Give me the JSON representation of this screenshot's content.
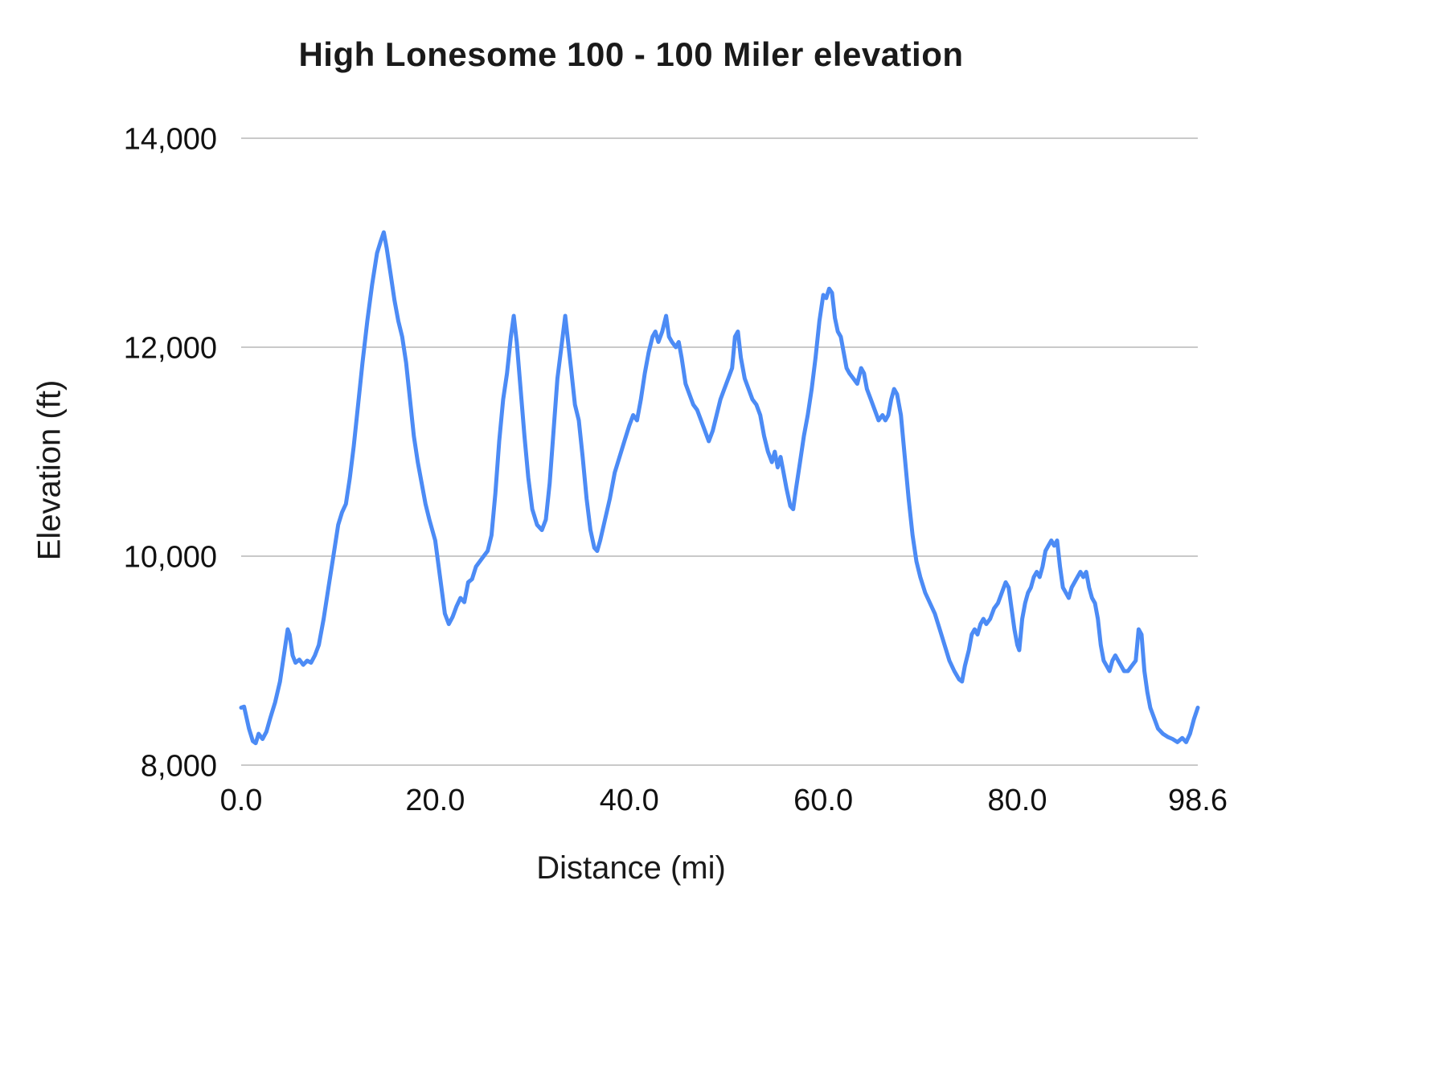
{
  "chart_data": {
    "type": "line",
    "title": "High Lonesome 100 - 100 Miler elevation",
    "xlabel": "Distance (mi)",
    "ylabel": "Elevation (ft)",
    "xlim": [
      0,
      98.6
    ],
    "ylim": [
      8000,
      14000
    ],
    "grid": "horizontal",
    "legend": "none",
    "background_color": "#ffffff",
    "line_color": "#4c8bf5",
    "grid_color": "#c9c9c9",
    "xticks": {
      "values": [
        0,
        20,
        40,
        60,
        80,
        98.6
      ],
      "labels": [
        "0.0",
        "20.0",
        "40.0",
        "60.0",
        "80.0",
        "98.6"
      ]
    },
    "yticks": {
      "values": [
        8000,
        10000,
        12000,
        14000
      ],
      "labels": [
        "8,000",
        "10,000",
        "12,000",
        "14,000"
      ]
    },
    "series_name": "Elevation",
    "points": [
      [
        0.0,
        8550
      ],
      [
        0.3,
        8560
      ],
      [
        0.8,
        8350
      ],
      [
        1.2,
        8230
      ],
      [
        1.5,
        8210
      ],
      [
        1.8,
        8300
      ],
      [
        2.2,
        8250
      ],
      [
        2.6,
        8320
      ],
      [
        3.0,
        8450
      ],
      [
        3.5,
        8600
      ],
      [
        4.0,
        8800
      ],
      [
        4.4,
        9050
      ],
      [
        4.8,
        9300
      ],
      [
        5.0,
        9250
      ],
      [
        5.3,
        9050
      ],
      [
        5.6,
        8980
      ],
      [
        6.0,
        9010
      ],
      [
        6.4,
        8960
      ],
      [
        6.8,
        9000
      ],
      [
        7.2,
        8980
      ],
      [
        7.6,
        9050
      ],
      [
        8.0,
        9150
      ],
      [
        8.5,
        9400
      ],
      [
        9.0,
        9700
      ],
      [
        9.5,
        10000
      ],
      [
        10.0,
        10300
      ],
      [
        10.4,
        10420
      ],
      [
        10.8,
        10500
      ],
      [
        11.2,
        10750
      ],
      [
        11.6,
        11050
      ],
      [
        12.0,
        11400
      ],
      [
        12.5,
        11850
      ],
      [
        13.0,
        12250
      ],
      [
        13.5,
        12600
      ],
      [
        14.0,
        12900
      ],
      [
        14.4,
        13020
      ],
      [
        14.7,
        13100
      ],
      [
        15.0,
        12950
      ],
      [
        15.4,
        12700
      ],
      [
        15.8,
        12450
      ],
      [
        16.2,
        12250
      ],
      [
        16.6,
        12100
      ],
      [
        17.0,
        11850
      ],
      [
        17.4,
        11500
      ],
      [
        17.8,
        11150
      ],
      [
        18.2,
        10900
      ],
      [
        18.6,
        10700
      ],
      [
        19.0,
        10500
      ],
      [
        19.4,
        10350
      ],
      [
        20.0,
        10150
      ],
      [
        20.5,
        9800
      ],
      [
        21.0,
        9450
      ],
      [
        21.4,
        9350
      ],
      [
        21.8,
        9420
      ],
      [
        22.2,
        9520
      ],
      [
        22.6,
        9600
      ],
      [
        23.0,
        9560
      ],
      [
        23.4,
        9750
      ],
      [
        23.8,
        9780
      ],
      [
        24.2,
        9900
      ],
      [
        24.6,
        9950
      ],
      [
        25.0,
        10000
      ],
      [
        25.4,
        10050
      ],
      [
        25.8,
        10200
      ],
      [
        26.2,
        10600
      ],
      [
        26.6,
        11100
      ],
      [
        27.0,
        11500
      ],
      [
        27.4,
        11750
      ],
      [
        27.8,
        12100
      ],
      [
        28.1,
        12300
      ],
      [
        28.4,
        12050
      ],
      [
        28.8,
        11600
      ],
      [
        29.2,
        11150
      ],
      [
        29.6,
        10750
      ],
      [
        30.0,
        10450
      ],
      [
        30.5,
        10300
      ],
      [
        31.0,
        10250
      ],
      [
        31.4,
        10350
      ],
      [
        31.8,
        10700
      ],
      [
        32.2,
        11200
      ],
      [
        32.6,
        11700
      ],
      [
        33.0,
        12000
      ],
      [
        33.4,
        12300
      ],
      [
        33.7,
        12050
      ],
      [
        34.0,
        11800
      ],
      [
        34.4,
        11450
      ],
      [
        34.8,
        11300
      ],
      [
        35.2,
        10950
      ],
      [
        35.6,
        10550
      ],
      [
        36.0,
        10250
      ],
      [
        36.4,
        10080
      ],
      [
        36.7,
        10050
      ],
      [
        37.0,
        10150
      ],
      [
        37.5,
        10350
      ],
      [
        38.0,
        10550
      ],
      [
        38.5,
        10800
      ],
      [
        39.0,
        10950
      ],
      [
        39.5,
        11100
      ],
      [
        40.0,
        11250
      ],
      [
        40.4,
        11350
      ],
      [
        40.8,
        11300
      ],
      [
        41.2,
        11500
      ],
      [
        41.6,
        11750
      ],
      [
        42.0,
        11950
      ],
      [
        42.4,
        12100
      ],
      [
        42.7,
        12150
      ],
      [
        43.0,
        12050
      ],
      [
        43.4,
        12150
      ],
      [
        43.8,
        12300
      ],
      [
        44.1,
        12100
      ],
      [
        44.4,
        12050
      ],
      [
        44.8,
        12000
      ],
      [
        45.1,
        12050
      ],
      [
        45.4,
        11900
      ],
      [
        45.8,
        11650
      ],
      [
        46.2,
        11550
      ],
      [
        46.6,
        11450
      ],
      [
        47.0,
        11400
      ],
      [
        47.4,
        11300
      ],
      [
        47.8,
        11200
      ],
      [
        48.2,
        11100
      ],
      [
        48.6,
        11200
      ],
      [
        49.0,
        11350
      ],
      [
        49.4,
        11500
      ],
      [
        49.8,
        11600
      ],
      [
        50.2,
        11700
      ],
      [
        50.6,
        11800
      ],
      [
        50.9,
        12100
      ],
      [
        51.2,
        12150
      ],
      [
        51.5,
        11900
      ],
      [
        51.9,
        11700
      ],
      [
        52.3,
        11600
      ],
      [
        52.7,
        11500
      ],
      [
        53.1,
        11450
      ],
      [
        53.5,
        11350
      ],
      [
        53.9,
        11150
      ],
      [
        54.3,
        11000
      ],
      [
        54.7,
        10900
      ],
      [
        55.0,
        11000
      ],
      [
        55.3,
        10850
      ],
      [
        55.6,
        10950
      ],
      [
        55.9,
        10800
      ],
      [
        56.2,
        10650
      ],
      [
        56.6,
        10480
      ],
      [
        56.9,
        10450
      ],
      [
        57.2,
        10650
      ],
      [
        57.6,
        10900
      ],
      [
        58.0,
        11150
      ],
      [
        58.4,
        11350
      ],
      [
        58.8,
        11600
      ],
      [
        59.2,
        11900
      ],
      [
        59.6,
        12250
      ],
      [
        60.0,
        12500
      ],
      [
        60.3,
        12470
      ],
      [
        60.6,
        12560
      ],
      [
        60.9,
        12520
      ],
      [
        61.2,
        12280
      ],
      [
        61.5,
        12150
      ],
      [
        61.8,
        12100
      ],
      [
        62.1,
        11950
      ],
      [
        62.4,
        11800
      ],
      [
        62.7,
        11750
      ],
      [
        63.1,
        11700
      ],
      [
        63.5,
        11650
      ],
      [
        63.9,
        11800
      ],
      [
        64.2,
        11750
      ],
      [
        64.5,
        11600
      ],
      [
        64.9,
        11500
      ],
      [
        65.3,
        11400
      ],
      [
        65.7,
        11300
      ],
      [
        66.1,
        11350
      ],
      [
        66.4,
        11300
      ],
      [
        66.7,
        11350
      ],
      [
        67.0,
        11500
      ],
      [
        67.3,
        11600
      ],
      [
        67.6,
        11550
      ],
      [
        68.0,
        11350
      ],
      [
        68.4,
        10950
      ],
      [
        68.8,
        10550
      ],
      [
        69.2,
        10200
      ],
      [
        69.6,
        9950
      ],
      [
        70.0,
        9800
      ],
      [
        70.5,
        9650
      ],
      [
        71.0,
        9550
      ],
      [
        71.5,
        9450
      ],
      [
        72.0,
        9300
      ],
      [
        72.5,
        9150
      ],
      [
        73.0,
        9000
      ],
      [
        73.5,
        8900
      ],
      [
        74.0,
        8820
      ],
      [
        74.3,
        8800
      ],
      [
        74.6,
        8950
      ],
      [
        75.0,
        9100
      ],
      [
        75.3,
        9250
      ],
      [
        75.6,
        9300
      ],
      [
        75.9,
        9250
      ],
      [
        76.2,
        9350
      ],
      [
        76.5,
        9400
      ],
      [
        76.8,
        9350
      ],
      [
        77.2,
        9400
      ],
      [
        77.6,
        9500
      ],
      [
        78.0,
        9550
      ],
      [
        78.4,
        9650
      ],
      [
        78.8,
        9750
      ],
      [
        79.1,
        9700
      ],
      [
        79.4,
        9500
      ],
      [
        79.7,
        9300
      ],
      [
        80.0,
        9150
      ],
      [
        80.2,
        9100
      ],
      [
        80.5,
        9400
      ],
      [
        80.8,
        9550
      ],
      [
        81.1,
        9650
      ],
      [
        81.4,
        9700
      ],
      [
        81.7,
        9800
      ],
      [
        82.0,
        9850
      ],
      [
        82.3,
        9800
      ],
      [
        82.6,
        9900
      ],
      [
        82.9,
        10050
      ],
      [
        83.2,
        10100
      ],
      [
        83.5,
        10150
      ],
      [
        83.8,
        10100
      ],
      [
        84.1,
        10150
      ],
      [
        84.4,
        9900
      ],
      [
        84.7,
        9700
      ],
      [
        85.0,
        9650
      ],
      [
        85.3,
        9600
      ],
      [
        85.6,
        9700
      ],
      [
        85.9,
        9750
      ],
      [
        86.2,
        9800
      ],
      [
        86.5,
        9850
      ],
      [
        86.8,
        9800
      ],
      [
        87.1,
        9850
      ],
      [
        87.4,
        9700
      ],
      [
        87.7,
        9600
      ],
      [
        88.0,
        9550
      ],
      [
        88.3,
        9400
      ],
      [
        88.6,
        9150
      ],
      [
        88.9,
        9000
      ],
      [
        89.2,
        8950
      ],
      [
        89.5,
        8900
      ],
      [
        89.8,
        9000
      ],
      [
        90.1,
        9050
      ],
      [
        90.4,
        9000
      ],
      [
        90.7,
        8950
      ],
      [
        91.0,
        8900
      ],
      [
        91.4,
        8900
      ],
      [
        91.8,
        8950
      ],
      [
        92.2,
        9000
      ],
      [
        92.5,
        9300
      ],
      [
        92.8,
        9250
      ],
      [
        93.1,
        8900
      ],
      [
        93.4,
        8700
      ],
      [
        93.7,
        8550
      ],
      [
        94.1,
        8450
      ],
      [
        94.5,
        8350
      ],
      [
        95.0,
        8300
      ],
      [
        95.5,
        8270
      ],
      [
        96.0,
        8250
      ],
      [
        96.5,
        8220
      ],
      [
        97.0,
        8260
      ],
      [
        97.4,
        8220
      ],
      [
        97.8,
        8300
      ],
      [
        98.2,
        8440
      ],
      [
        98.6,
        8550
      ]
    ]
  }
}
